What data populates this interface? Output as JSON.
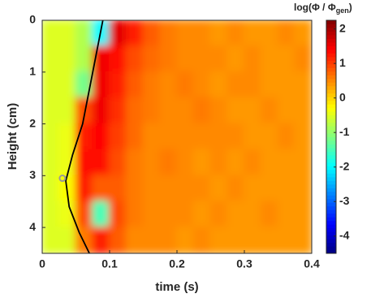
{
  "chart_data": {
    "type": "heatmap",
    "xlabel": "time (s)",
    "ylabel": "Height (cm)",
    "xlim": [
      0,
      0.4
    ],
    "xticks": [
      0,
      0.1,
      0.2,
      0.3,
      0.4
    ],
    "ylim": [
      0,
      4.5
    ],
    "yticks": [
      0,
      1,
      2,
      3,
      4
    ],
    "y_inverted": true,
    "x_bins": [
      0,
      0.025,
      0.05,
      0.075,
      0.1,
      0.125,
      0.15,
      0.175,
      0.2,
      0.225,
      0.25,
      0.275,
      0.3,
      0.325,
      0.35,
      0.375,
      0.4
    ],
    "y_bins": [
      0,
      0.5,
      1,
      1.5,
      2,
      2.5,
      3,
      3.5,
      4,
      4.5
    ],
    "z": [
      [
        -0.5,
        -0.5,
        -0.8,
        -2,
        1.6,
        1.2,
        0.8,
        0.6,
        0.5,
        0.5,
        0.4,
        0.5,
        0.4,
        0.4,
        0.5,
        0.4
      ],
      [
        -0.5,
        -0.5,
        -0.8,
        1.5,
        1.3,
        0.9,
        0.7,
        0.6,
        0.5,
        0.5,
        0.5,
        0.4,
        0.5,
        0.4,
        0.4,
        0.5
      ],
      [
        -0.5,
        -0.5,
        -1.2,
        1.5,
        1.2,
        0.8,
        0.6,
        0.5,
        0.6,
        0.5,
        0.4,
        0.5,
        0.5,
        0.4,
        0.4,
        0.4
      ],
      [
        -0.5,
        -0.5,
        0.9,
        1.5,
        1.1,
        0.7,
        0.6,
        0.5,
        0.5,
        0.6,
        0.5,
        0.4,
        0.4,
        0.5,
        0.4,
        0.4
      ],
      [
        -0.5,
        -0.4,
        1.2,
        1.4,
        1.0,
        0.7,
        0.5,
        0.5,
        0.5,
        0.5,
        0.5,
        0.5,
        0.4,
        0.4,
        0.5,
        0.4
      ],
      [
        -0.5,
        -0.4,
        1.3,
        1.3,
        0.9,
        0.6,
        0.5,
        0.6,
        0.5,
        0.4,
        0.5,
        0.4,
        0.5,
        0.4,
        0.4,
        0.4
      ],
      [
        -0.5,
        -0.3,
        1.2,
        0.8,
        0.8,
        0.6,
        0.5,
        0.5,
        0.5,
        0.5,
        0.4,
        0.5,
        0.4,
        0.4,
        0.4,
        0.4
      ],
      [
        -0.5,
        -0.4,
        0.9,
        -1.5,
        0.9,
        0.6,
        0.5,
        0.5,
        0.5,
        0.4,
        0.5,
        0.4,
        0.4,
        0.5,
        0.4,
        0.4
      ],
      [
        -0.5,
        -0.5,
        0.6,
        1.2,
        0.8,
        0.5,
        0.5,
        0.5,
        0.4,
        0.5,
        0.4,
        0.4,
        0.4,
        0.4,
        0.4,
        0.4
      ]
    ],
    "colormap": "jet",
    "clim": [
      -4.5,
      2.25
    ],
    "cticks": [
      2,
      1,
      0,
      -1,
      -2,
      -3,
      -4
    ],
    "colorbar_label": {
      "main": "log(Φ / Φ",
      "sub": "gen",
      "close": ")"
    },
    "contour": {
      "color": "#000000",
      "x": [
        0.09,
        0.075,
        0.06,
        0.045,
        0.035,
        0.04,
        0.055,
        0.07
      ],
      "y": [
        0,
        1,
        2,
        2.6,
        3.1,
        3.6,
        4.1,
        4.5
      ]
    },
    "marker": {
      "color": "#999999",
      "x": 0.03,
      "y": 3.05
    }
  }
}
